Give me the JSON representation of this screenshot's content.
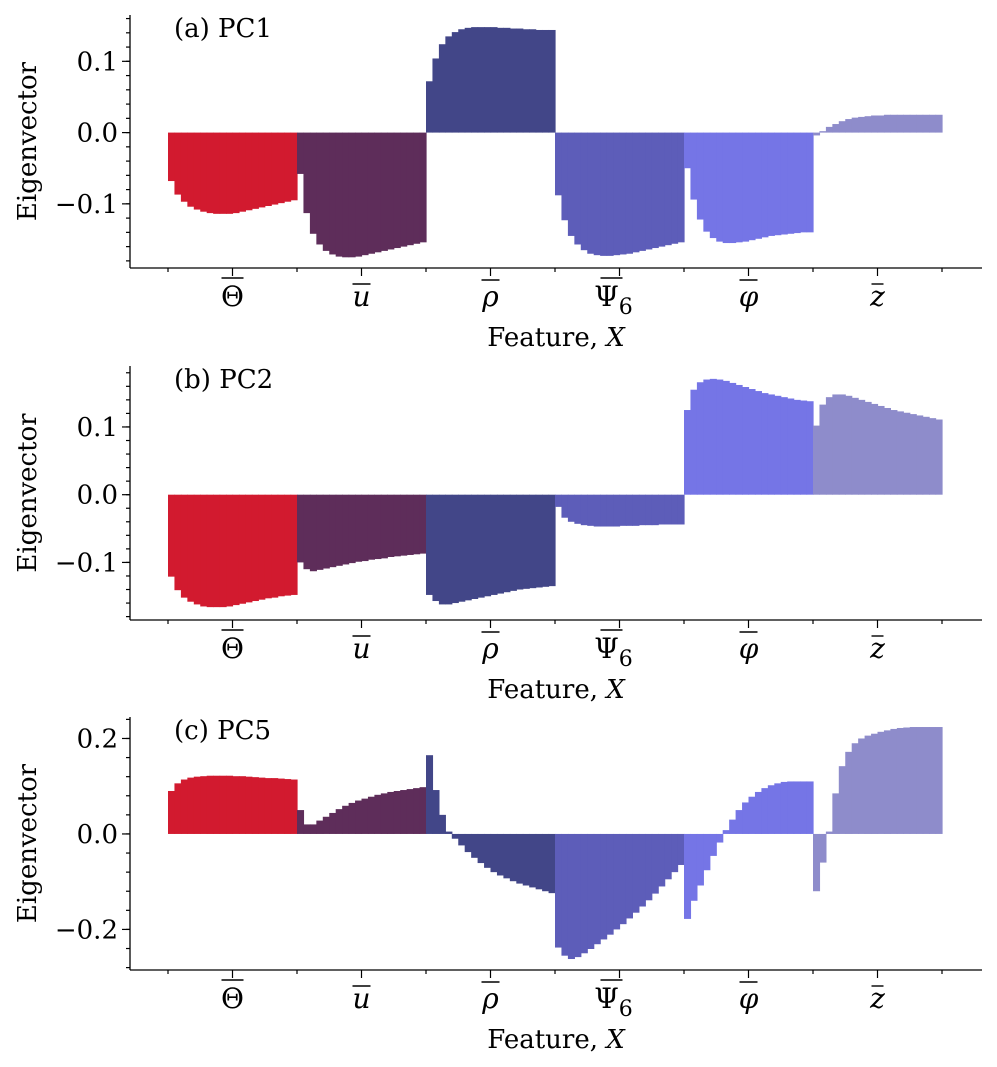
{
  "chart_data": [
    {
      "type": "bar",
      "title": "(a) PC1",
      "xlabel": "Feature, X",
      "ylabel": "Eigenvector",
      "ylim": [
        -0.19,
        0.165
      ],
      "yticks": [
        0.1,
        0.0,
        -0.1
      ],
      "ytick_labels": [
        "0.1",
        "0.0",
        "−0.1"
      ],
      "categories": [
        "Θ",
        "u",
        "ρ",
        "Ψ6",
        "φ",
        "z"
      ],
      "groups": [
        {
          "feature": "Theta",
          "color": "#d21a2f",
          "values": [
            -0.068,
            -0.087,
            -0.097,
            -0.104,
            -0.108,
            -0.111,
            -0.113,
            -0.114,
            -0.114,
            -0.114,
            -0.113,
            -0.111,
            -0.109,
            -0.107,
            -0.105,
            -0.103,
            -0.101,
            -0.099,
            -0.097,
            -0.095
          ]
        },
        {
          "feature": "u",
          "color": "#5e2d5a",
          "values": [
            -0.058,
            -0.113,
            -0.142,
            -0.157,
            -0.166,
            -0.171,
            -0.174,
            -0.175,
            -0.175,
            -0.174,
            -0.172,
            -0.17,
            -0.168,
            -0.166,
            -0.164,
            -0.162,
            -0.16,
            -0.158,
            -0.156,
            -0.154
          ]
        },
        {
          "feature": "rho",
          "color": "#424688",
          "values": [
            0.072,
            0.104,
            0.124,
            0.135,
            0.141,
            0.145,
            0.147,
            0.148,
            0.148,
            0.148,
            0.148,
            0.147,
            0.147,
            0.146,
            0.146,
            0.145,
            0.145,
            0.144,
            0.144,
            0.144
          ]
        },
        {
          "feature": "Psi6",
          "color": "#5d5db9",
          "values": [
            -0.088,
            -0.123,
            -0.145,
            -0.157,
            -0.165,
            -0.17,
            -0.172,
            -0.173,
            -0.173,
            -0.172,
            -0.171,
            -0.17,
            -0.168,
            -0.166,
            -0.164,
            -0.162,
            -0.16,
            -0.158,
            -0.156,
            -0.154
          ]
        },
        {
          "feature": "phi",
          "color": "#7575e6",
          "values": [
            -0.05,
            -0.094,
            -0.122,
            -0.139,
            -0.148,
            -0.153,
            -0.155,
            -0.155,
            -0.154,
            -0.153,
            -0.151,
            -0.149,
            -0.147,
            -0.145,
            -0.144,
            -0.143,
            -0.142,
            -0.141,
            -0.14,
            -0.14
          ]
        },
        {
          "feature": "z",
          "color": "#8e8ccb",
          "values": [
            -0.004,
            0.002,
            0.008,
            0.012,
            0.016,
            0.019,
            0.021,
            0.022,
            0.023,
            0.024,
            0.024,
            0.025,
            0.025,
            0.025,
            0.025,
            0.025,
            0.025,
            0.025,
            0.025,
            0.025
          ]
        }
      ]
    },
    {
      "type": "bar",
      "title": "(b) PC2",
      "xlabel": "Feature, X",
      "ylabel": "Eigenvector",
      "ylim": [
        -0.185,
        0.19
      ],
      "yticks": [
        0.1,
        0.0,
        -0.1
      ],
      "ytick_labels": [
        "0.1",
        "0.0",
        "−0.1"
      ],
      "categories": [
        "Θ",
        "u",
        "ρ",
        "Ψ6",
        "φ",
        "z"
      ],
      "groups": [
        {
          "feature": "Theta",
          "color": "#d21a2f",
          "values": [
            -0.121,
            -0.141,
            -0.152,
            -0.158,
            -0.162,
            -0.165,
            -0.166,
            -0.166,
            -0.166,
            -0.165,
            -0.163,
            -0.161,
            -0.159,
            -0.157,
            -0.155,
            -0.153,
            -0.152,
            -0.15,
            -0.149,
            -0.148
          ]
        },
        {
          "feature": "u",
          "color": "#5e2d5a",
          "values": [
            -0.1,
            -0.11,
            -0.113,
            -0.111,
            -0.109,
            -0.107,
            -0.105,
            -0.103,
            -0.101,
            -0.099,
            -0.098,
            -0.096,
            -0.095,
            -0.094,
            -0.092,
            -0.091,
            -0.09,
            -0.089,
            -0.088,
            -0.087
          ]
        },
        {
          "feature": "rho",
          "color": "#424688",
          "values": [
            -0.148,
            -0.157,
            -0.162,
            -0.162,
            -0.16,
            -0.158,
            -0.156,
            -0.154,
            -0.152,
            -0.15,
            -0.148,
            -0.146,
            -0.144,
            -0.142,
            -0.14,
            -0.139,
            -0.138,
            -0.137,
            -0.136,
            -0.135
          ]
        },
        {
          "feature": "Psi6",
          "color": "#5d5db9",
          "values": [
            -0.018,
            -0.034,
            -0.04,
            -0.043,
            -0.045,
            -0.046,
            -0.047,
            -0.047,
            -0.047,
            -0.047,
            -0.046,
            -0.046,
            -0.046,
            -0.045,
            -0.045,
            -0.045,
            -0.044,
            -0.044,
            -0.044,
            -0.044
          ]
        },
        {
          "feature": "phi",
          "color": "#7575e6",
          "values": [
            0.125,
            0.155,
            0.166,
            0.17,
            0.171,
            0.17,
            0.168,
            0.165,
            0.162,
            0.159,
            0.156,
            0.153,
            0.15,
            0.148,
            0.146,
            0.144,
            0.142,
            0.14,
            0.139,
            0.138
          ]
        },
        {
          "feature": "z",
          "color": "#8e8ccb",
          "values": [
            0.102,
            0.133,
            0.144,
            0.148,
            0.148,
            0.146,
            0.143,
            0.14,
            0.137,
            0.134,
            0.131,
            0.128,
            0.125,
            0.123,
            0.121,
            0.119,
            0.117,
            0.115,
            0.113,
            0.111
          ]
        }
      ]
    },
    {
      "type": "bar",
      "title": "(c) PC5",
      "xlabel": "Feature, X",
      "ylabel": "Eigenvector",
      "ylim": [
        -0.285,
        0.245
      ],
      "yticks": [
        0.2,
        0.0,
        -0.2
      ],
      "ytick_labels": [
        "0.2",
        "0.0",
        "−0.2"
      ],
      "categories": [
        "Θ",
        "u",
        "ρ",
        "Ψ6",
        "φ",
        "z"
      ],
      "groups": [
        {
          "feature": "Theta",
          "color": "#d21a2f",
          "values": [
            0.09,
            0.106,
            0.114,
            0.118,
            0.12,
            0.121,
            0.122,
            0.122,
            0.122,
            0.122,
            0.121,
            0.121,
            0.12,
            0.119,
            0.118,
            0.117,
            0.117,
            0.116,
            0.115,
            0.114
          ]
        },
        {
          "feature": "u",
          "color": "#5e2d5a",
          "values": [
            0.05,
            0.02,
            0.02,
            0.028,
            0.036,
            0.044,
            0.052,
            0.059,
            0.065,
            0.07,
            0.074,
            0.078,
            0.082,
            0.085,
            0.088,
            0.09,
            0.092,
            0.094,
            0.096,
            0.098
          ]
        },
        {
          "feature": "rho",
          "color": "#424688",
          "values": [
            0.165,
            0.092,
            0.04,
            0.005,
            -0.01,
            -0.024,
            -0.038,
            -0.05,
            -0.061,
            -0.071,
            -0.08,
            -0.087,
            -0.093,
            -0.099,
            -0.104,
            -0.108,
            -0.112,
            -0.116,
            -0.12,
            -0.124
          ]
        },
        {
          "feature": "Psi6",
          "color": "#5d5db9",
          "values": [
            -0.238,
            -0.255,
            -0.262,
            -0.258,
            -0.25,
            -0.241,
            -0.231,
            -0.221,
            -0.211,
            -0.2,
            -0.189,
            -0.177,
            -0.165,
            -0.152,
            -0.139,
            -0.125,
            -0.11,
            -0.095,
            -0.08,
            -0.065
          ]
        },
        {
          "feature": "phi",
          "color": "#7575e6",
          "values": [
            -0.178,
            -0.14,
            -0.108,
            -0.076,
            -0.046,
            -0.018,
            0.008,
            0.03,
            0.05,
            0.066,
            0.078,
            0.088,
            0.096,
            0.102,
            0.106,
            0.109,
            0.11,
            0.11,
            0.11,
            0.11
          ]
        },
        {
          "feature": "z",
          "color": "#8e8ccb",
          "values": [
            -0.12,
            -0.06,
            0.005,
            0.085,
            0.142,
            0.172,
            0.19,
            0.2,
            0.206,
            0.21,
            0.214,
            0.217,
            0.22,
            0.222,
            0.223,
            0.224,
            0.224,
            0.224,
            0.224,
            0.224
          ]
        }
      ]
    }
  ],
  "feature_labels": {
    "Theta": "Θ",
    "u": "u",
    "rho": "ρ",
    "Psi6": "Ψ",
    "Psi6_sub": "6",
    "phi": "φ",
    "z": "z"
  }
}
